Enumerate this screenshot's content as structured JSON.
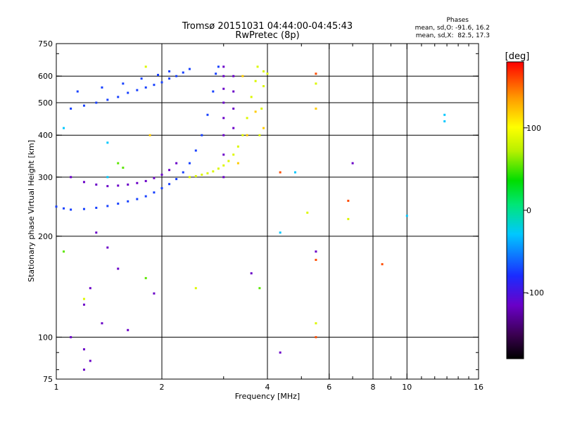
{
  "chart_data": {
    "type": "scatter",
    "title_line1": "Tromsø 20151031 04:44:00-04:45:43",
    "title_line2": "RwPretec (8p)",
    "xlabel": "Frequency [MHz]",
    "ylabel": "Stationary phase Virtual Height [km]",
    "x_scale": "log",
    "y_scale": "log",
    "xlim": [
      1,
      16
    ],
    "ylim": [
      75,
      750
    ],
    "x_ticks": [
      1,
      2,
      4,
      6,
      8,
      10,
      16
    ],
    "x_minor_ticks": [
      3,
      5,
      7,
      9,
      11,
      12,
      13,
      14,
      15
    ],
    "y_ticks": [
      75,
      100,
      200,
      300,
      400,
      500,
      600,
      750
    ],
    "x_gridlines": [
      2,
      4,
      6,
      8,
      10
    ],
    "y_gridlines": [
      100,
      200,
      300,
      400,
      500,
      600
    ],
    "grid": true,
    "stats": {
      "heading": "Phases",
      "line_o": "mean, sd,O: -91.6, 16.2",
      "line_x": "mean, sd,X:  82.5, 17.3"
    },
    "colorbar": {
      "label": "[deg]",
      "range": [
        -180,
        180
      ],
      "ticks": [
        100,
        0,
        -100
      ],
      "tick_labels": [
        "100",
        "0",
        "-100"
      ]
    },
    "series": [
      {
        "mode": "O",
        "phase_deg": -95,
        "points": [
          [
            1.0,
            245
          ],
          [
            1.05,
            242
          ],
          [
            1.1,
            240
          ],
          [
            1.2,
            241
          ],
          [
            1.3,
            243
          ],
          [
            1.4,
            246
          ],
          [
            1.5,
            250
          ],
          [
            1.6,
            254
          ],
          [
            1.7,
            258
          ],
          [
            1.8,
            263
          ],
          [
            1.9,
            270
          ],
          [
            2.0,
            278
          ],
          [
            2.1,
            286
          ],
          [
            2.2,
            296
          ],
          [
            2.3,
            310
          ],
          [
            2.4,
            330
          ],
          [
            2.5,
            360
          ],
          [
            2.6,
            400
          ],
          [
            2.7,
            460
          ],
          [
            2.8,
            540
          ],
          [
            2.85,
            610
          ],
          [
            2.9,
            640
          ],
          [
            1.1,
            480
          ],
          [
            1.2,
            490
          ],
          [
            1.3,
            500
          ],
          [
            1.4,
            510
          ],
          [
            1.5,
            520
          ],
          [
            1.6,
            535
          ],
          [
            1.7,
            545
          ],
          [
            1.8,
            555
          ],
          [
            1.9,
            565
          ],
          [
            2.0,
            575
          ],
          [
            2.1,
            590
          ],
          [
            2.2,
            600
          ],
          [
            2.3,
            615
          ],
          [
            2.4,
            630
          ],
          [
            1.15,
            540
          ],
          [
            1.35,
            555
          ],
          [
            1.55,
            570
          ],
          [
            1.75,
            590
          ],
          [
            1.95,
            605
          ],
          [
            2.1,
            620
          ]
        ]
      },
      {
        "mode": "O",
        "phase_deg": -120,
        "points": [
          [
            1.1,
            300
          ],
          [
            1.2,
            290
          ],
          [
            1.3,
            285
          ],
          [
            1.4,
            282
          ],
          [
            1.5,
            283
          ],
          [
            1.6,
            285
          ],
          [
            1.7,
            288
          ],
          [
            1.8,
            292
          ],
          [
            1.9,
            298
          ],
          [
            2.0,
            305
          ],
          [
            2.1,
            315
          ],
          [
            2.2,
            330
          ],
          [
            3.0,
            300
          ],
          [
            3.0,
            350
          ],
          [
            3.0,
            400
          ],
          [
            3.0,
            450
          ],
          [
            3.0,
            500
          ],
          [
            3.0,
            550
          ],
          [
            3.0,
            600
          ],
          [
            3.0,
            640
          ],
          [
            3.2,
            420
          ],
          [
            3.2,
            480
          ],
          [
            3.2,
            540
          ],
          [
            3.2,
            600
          ],
          [
            1.3,
            205
          ],
          [
            1.4,
            185
          ],
          [
            1.5,
            160
          ],
          [
            1.25,
            140
          ],
          [
            1.2,
            125
          ],
          [
            1.35,
            110
          ],
          [
            1.1,
            100
          ],
          [
            1.2,
            92
          ],
          [
            1.25,
            85
          ],
          [
            1.2,
            80
          ],
          [
            1.6,
            105
          ],
          [
            3.6,
            155
          ],
          [
            4.35,
            90
          ],
          [
            5.5,
            180
          ],
          [
            7.0,
            330
          ],
          [
            1.9,
            135
          ]
        ]
      },
      {
        "mode": "X",
        "phase_deg": 80,
        "points": [
          [
            2.4,
            300
          ],
          [
            2.5,
            302
          ],
          [
            2.6,
            305
          ],
          [
            2.7,
            308
          ],
          [
            2.8,
            312
          ],
          [
            2.9,
            318
          ],
          [
            3.0,
            325
          ],
          [
            3.1,
            335
          ],
          [
            3.2,
            350
          ],
          [
            3.3,
            370
          ],
          [
            3.4,
            400
          ],
          [
            3.5,
            450
          ],
          [
            3.6,
            520
          ],
          [
            3.7,
            580
          ],
          [
            3.75,
            640
          ],
          [
            3.8,
            400
          ],
          [
            3.85,
            480
          ],
          [
            3.9,
            560
          ],
          [
            3.9,
            620
          ],
          [
            1.8,
            640
          ],
          [
            4.0,
            610
          ],
          [
            2.5,
            140
          ],
          [
            1.2,
            130
          ],
          [
            5.5,
            570
          ],
          [
            5.5,
            110
          ],
          [
            5.2,
            235
          ],
          [
            6.8,
            225
          ]
        ]
      },
      {
        "mode": "X",
        "phase_deg": 120,
        "points": [
          [
            3.3,
            330
          ],
          [
            3.5,
            400
          ],
          [
            3.7,
            470
          ],
          [
            3.4,
            600
          ],
          [
            3.9,
            420
          ],
          [
            5.5,
            480
          ],
          [
            1.85,
            400
          ]
        ]
      },
      {
        "mode": "X",
        "phase_deg": 160,
        "points": [
          [
            6.8,
            255
          ],
          [
            5.5,
            100
          ],
          [
            8.5,
            165
          ],
          [
            4.35,
            310
          ],
          [
            5.5,
            170
          ],
          [
            5.5,
            610
          ]
        ]
      },
      {
        "mode": "O",
        "phase_deg": -60,
        "points": [
          [
            4.35,
            205
          ],
          [
            10.0,
            230
          ],
          [
            12.8,
            440
          ],
          [
            12.8,
            460
          ],
          [
            1.05,
            420
          ],
          [
            1.4,
            300
          ],
          [
            1.4,
            380
          ],
          [
            4.8,
            310
          ]
        ]
      },
      {
        "mode": "X",
        "phase_deg": 30,
        "points": [
          [
            1.05,
            180
          ],
          [
            1.55,
            320
          ],
          [
            1.8,
            150
          ],
          [
            3.8,
            140
          ],
          [
            1.5,
            330
          ]
        ]
      }
    ]
  }
}
